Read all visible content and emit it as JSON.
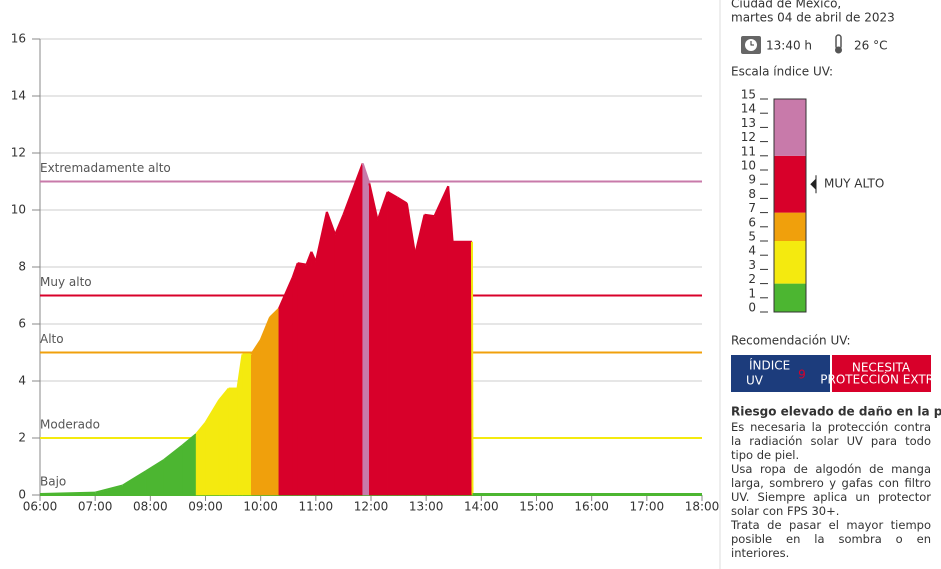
{
  "chart_data": {
    "type": "area",
    "xlim": [
      6,
      18
    ],
    "xticks": [
      {
        "value": 6,
        "label": "06:00"
      },
      {
        "value": 7,
        "label": "07:00"
      },
      {
        "value": 8,
        "label": "08:00"
      },
      {
        "value": 9,
        "label": "09:00"
      },
      {
        "value": 10,
        "label": "10:00"
      },
      {
        "value": 11,
        "label": "11:00"
      },
      {
        "value": 12,
        "label": "12:00"
      },
      {
        "value": 13,
        "label": "13:00"
      },
      {
        "value": 14,
        "label": "14:00"
      },
      {
        "value": 15,
        "label": "15:00"
      },
      {
        "value": 16,
        "label": "16:00"
      },
      {
        "value": 17,
        "label": "17:00"
      },
      {
        "value": 18,
        "label": "18:00"
      }
    ],
    "ylim": [
      0,
      16
    ],
    "yticks": [
      0,
      2,
      4,
      6,
      8,
      10,
      12,
      14,
      16
    ],
    "grid": true,
    "levels": [
      {
        "name": "Bajo",
        "value": 0,
        "color": "#4cb631"
      },
      {
        "name": "Moderado",
        "value": 2,
        "color": "#f4ea0f"
      },
      {
        "name": "Alto",
        "value": 5,
        "color": "#f0a00c"
      },
      {
        "name": "Muy alto",
        "value": 7,
        "color": "#d8002a"
      },
      {
        "name": "Extremadamente alto",
        "value": 11,
        "color": "#c87aaa"
      }
    ],
    "series": [
      {
        "x": [
          6,
          7,
          7.5,
          7.92,
          8.25,
          8.58,
          8.83,
          9,
          9.25,
          9.42,
          9.58,
          9.67,
          9.83,
          10,
          10.17,
          10.33,
          10.58,
          10.67,
          10.83,
          10.92,
          11,
          11.2,
          11.35,
          11.5,
          11.85,
          11.97,
          12.12,
          12.3,
          12.48,
          12.65,
          12.8,
          12.97,
          13.15,
          13.4,
          13.48,
          13.83,
          13.84,
          18
        ],
        "values": [
          0,
          0.05,
          0.3,
          0.8,
          1.2,
          1.7,
          2.1,
          2.5,
          3.3,
          3.7,
          3.7,
          4.9,
          4.9,
          5.4,
          6.2,
          6.5,
          7.6,
          8.1,
          8.05,
          8.5,
          8.15,
          9.9,
          9.1,
          9.8,
          11.6,
          10.9,
          9.6,
          10.6,
          10.4,
          10.2,
          8.4,
          9.8,
          9.75,
          10.8,
          8.85,
          8.85,
          0,
          0
        ]
      }
    ]
  },
  "side": {
    "place": "Ciudad de México,",
    "date": "martes 04 de abril de 2023",
    "time": "13:40 h",
    "temperature": "26 °C",
    "scale_title": "Escala índice UV:",
    "scale_lim": [
      0,
      15
    ],
    "scale_ticks": [
      0,
      1,
      2,
      3,
      4,
      5,
      6,
      7,
      8,
      9,
      10,
      11,
      12,
      13,
      14,
      15
    ],
    "current_level": "MUY ALTO",
    "recommendation_title": "Recomendación UV:",
    "badge_small": "ÍNDICE",
    "badge_big": "UV",
    "current_uv": 9,
    "badge_message": [
      "NECESITA",
      "PROTECCIÓN EXTRA"
    ],
    "risk_title": "Riesgo elevado de daño en la piel",
    "paragraphs": [
      "Es necesaria la protección contra la radiación solar UV para todo tipo de piel.",
      "Usa ropa de algodón de manga larga, sombrero y gafas con filtro UV. Siempre aplica un protector solar con FPS 30+.",
      "Trata de pasar el mayor tiempo posible en la sombra o en interiores."
    ]
  }
}
